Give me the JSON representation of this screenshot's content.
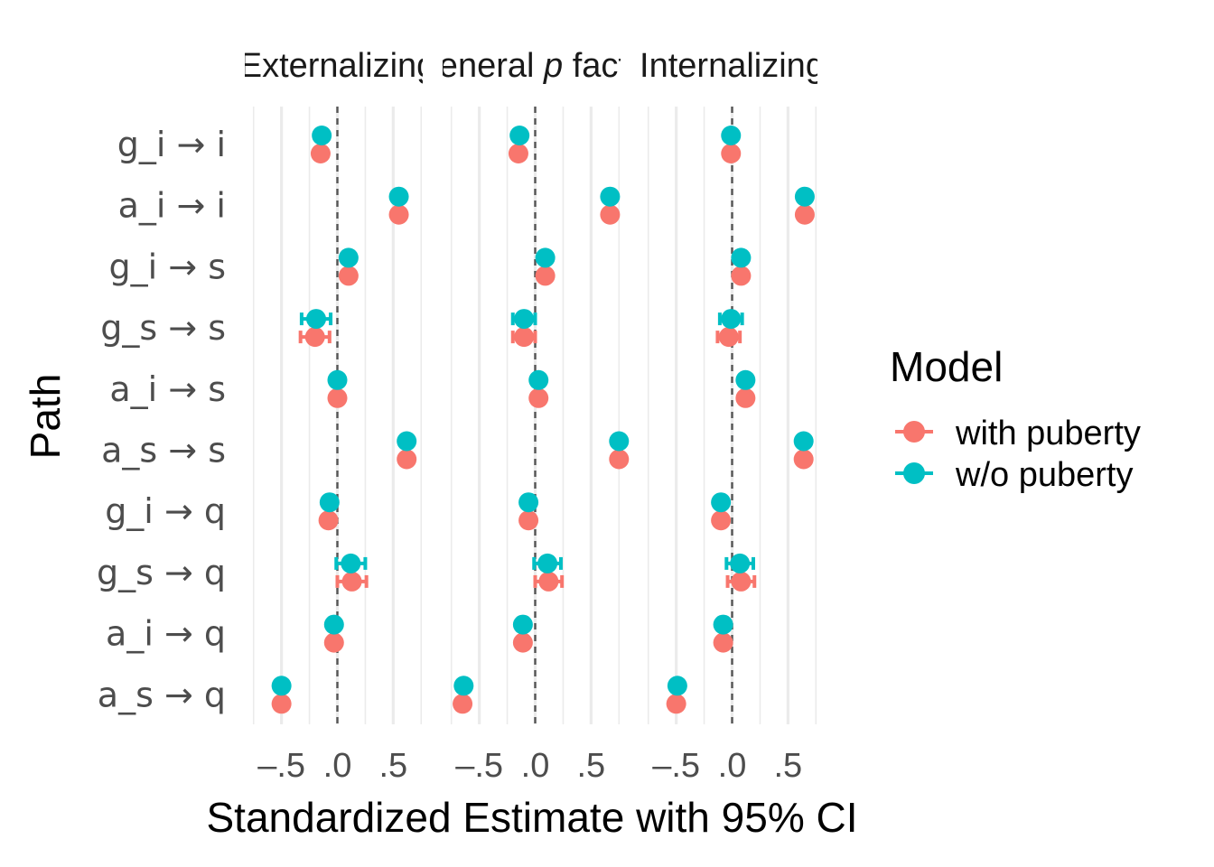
{
  "chart_data": {
    "type": "scatter",
    "title": "",
    "xlabel": "Standardized Estimate with 95% CI",
    "ylabel": "Path",
    "xlim": [
      -0.78,
      0.78
    ],
    "x_ticks": [
      -0.5,
      0.0,
      0.5
    ],
    "x_tick_labels": [
      "–.5",
      ".0",
      ".5"
    ],
    "reference_line": 0,
    "grid": true,
    "paths": [
      "g_i → i",
      "a_i → i",
      "g_i → s",
      "g_s → s",
      "a_i → s",
      "a_s → s",
      "g_i → q",
      "g_s → q",
      "a_i → q",
      "a_s → q"
    ],
    "legend": {
      "title": "Model",
      "position": "right"
    },
    "series": [
      {
        "name": "with puberty",
        "color": "#F8766D"
      },
      {
        "name": "w/o puberty",
        "color": "#00BFC4"
      }
    ],
    "panels": [
      {
        "label": "Externalizing",
        "estimates": {
          "with puberty": [
            -0.15,
            0.55,
            0.1,
            -0.2,
            0.0,
            0.62,
            -0.08,
            0.13,
            -0.03,
            -0.5
          ],
          "w/o puberty": [
            -0.14,
            0.55,
            0.1,
            -0.19,
            0.0,
            0.62,
            -0.07,
            0.12,
            -0.03,
            -0.5
          ]
        },
        "ci_halfwidth": {
          "with puberty": [
            0,
            0,
            0,
            0.13,
            0,
            0,
            0,
            0.13,
            0,
            0
          ],
          "w/o puberty": [
            0,
            0,
            0,
            0.13,
            0,
            0,
            0,
            0.13,
            0,
            0
          ]
        }
      },
      {
        "label": "General p factor",
        "label_parts": [
          {
            "text": "General ",
            "italic": false
          },
          {
            "text": "p",
            "italic": true
          },
          {
            "text": " factor",
            "italic": false
          }
        ],
        "estimates": {
          "with puberty": [
            -0.15,
            0.67,
            0.09,
            -0.1,
            0.03,
            0.75,
            -0.06,
            0.12,
            -0.11,
            -0.65
          ],
          "w/o puberty": [
            -0.14,
            0.67,
            0.09,
            -0.1,
            0.03,
            0.75,
            -0.06,
            0.11,
            -0.11,
            -0.64
          ]
        },
        "ci_halfwidth": {
          "with puberty": [
            0,
            0,
            0,
            0.1,
            0,
            0,
            0,
            0.12,
            0,
            0
          ],
          "w/o puberty": [
            0,
            0,
            0,
            0.1,
            0,
            0,
            0,
            0.12,
            0,
            0
          ]
        }
      },
      {
        "label": "Internalizing",
        "estimates": {
          "with puberty": [
            -0.01,
            0.65,
            0.08,
            -0.03,
            0.12,
            0.64,
            -0.1,
            0.08,
            -0.08,
            -0.5
          ],
          "w/o puberty": [
            -0.01,
            0.65,
            0.08,
            -0.01,
            0.12,
            0.64,
            -0.1,
            0.07,
            -0.08,
            -0.49
          ]
        },
        "ci_halfwidth": {
          "with puberty": [
            0,
            0,
            0,
            0.1,
            0,
            0,
            0,
            0.12,
            0,
            0
          ],
          "w/o puberty": [
            0,
            0,
            0,
            0.1,
            0,
            0,
            0,
            0.12,
            0,
            0
          ]
        }
      }
    ]
  }
}
